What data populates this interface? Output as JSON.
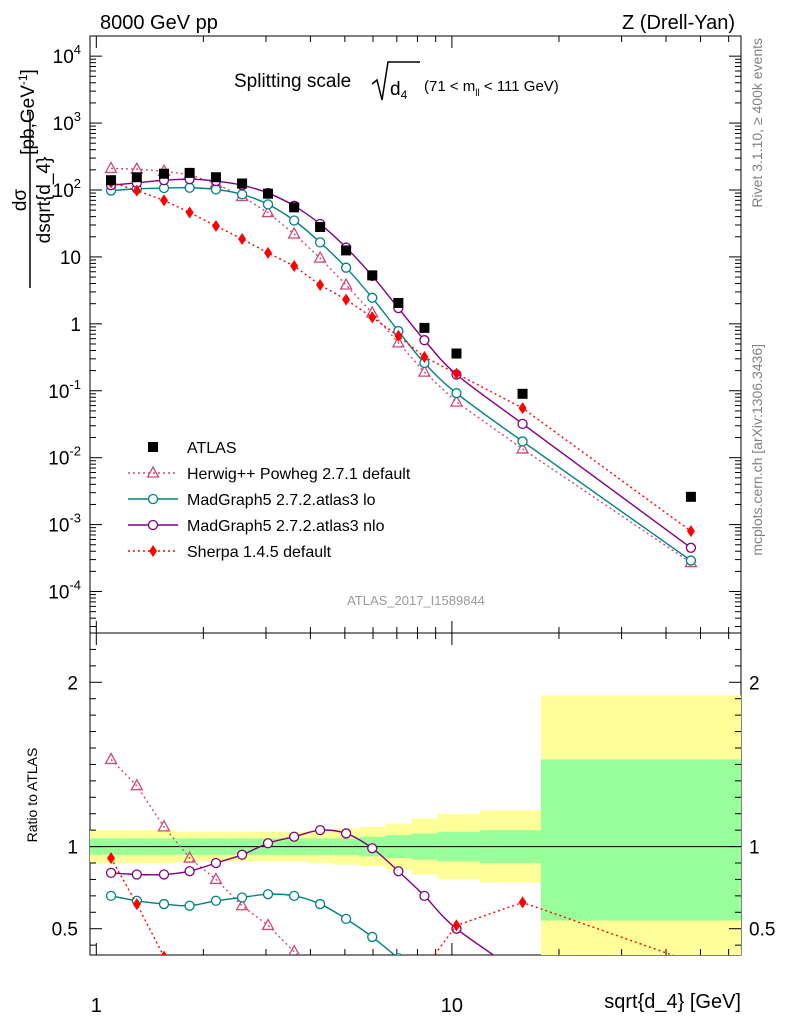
{
  "header": {
    "left": "8000 GeV pp",
    "right": "Z (Drell-Yan)"
  },
  "side_labels": {
    "rivet": "Rivet 3.1.10, ≥ 400k events",
    "mcplots": "mcplots.cern.ch [arXiv:1306.3436]"
  },
  "analysis_id": "ATLAS_2017_I1589844",
  "colors": {
    "atlas": "#000000",
    "herwig": "#cc4a78",
    "mg_lo": "#008080",
    "mg_nlo": "#800080",
    "sherpa": "#ff0000",
    "band_outer": "#ffff99",
    "band_inner": "#99ff99"
  },
  "chart_data": [
    {
      "type": "scatter",
      "panel": "main",
      "title": "Splitting scale √d4 (71 < mll < 111 GeV)",
      "title_parts": {
        "lead": "Splitting scale",
        "var": "d",
        "sub": "4",
        "range_pre": "(71 < m",
        "range_sub": "ll",
        "range_post": " < 111 GeV)"
      },
      "xlabel": "sqrt{d_4} [GeV]",
      "ylabel": "dσ/dsqrt{d_4} [pb,GeV⁻¹]",
      "ylabel_parts": {
        "num": "dσ",
        "den_pre": "dsqrt{d_4}",
        "unit_pre": "[pb,GeV",
        "unit_exp": "-1",
        "unit_post": "]"
      },
      "xscale": "log",
      "yscale": "log",
      "xlim": [
        0.96,
        65
      ],
      "ylim": [
        2.4e-05,
        20000
      ],
      "x_ticks": [
        {
          "v": 1,
          "label": "1"
        },
        {
          "v": 10,
          "label": "10"
        }
      ],
      "y_ticks": [
        {
          "v": 0.0001,
          "base": "10",
          "exp": "-4"
        },
        {
          "v": 0.001,
          "base": "10",
          "exp": "-3"
        },
        {
          "v": 0.01,
          "base": "10",
          "exp": "-2"
        },
        {
          "v": 0.1,
          "base": "10",
          "exp": "-1"
        },
        {
          "v": 1,
          "base": "1",
          "exp": ""
        },
        {
          "v": 10,
          "base": "10",
          "exp": ""
        },
        {
          "v": 100,
          "base": "10",
          "exp": "2"
        },
        {
          "v": 1000,
          "base": "10",
          "exp": "3"
        },
        {
          "v": 10000,
          "base": "10",
          "exp": "4"
        }
      ],
      "legend_position": "lower-left",
      "series": [
        {
          "name": "ATLAS",
          "key": "atlas",
          "marker": "square",
          "x": [
            1.1,
            1.3,
            1.55,
            1.83,
            2.17,
            2.57,
            3.04,
            3.6,
            4.26,
            5.04,
            5.97,
            7.07,
            8.37,
            10.3,
            15.8,
            47
          ],
          "y": [
            140,
            155,
            175,
            180,
            155,
            125,
            88,
            55,
            28,
            12.5,
            5.3,
            2.05,
            0.87,
            0.36,
            0.09,
            0.0026
          ]
        },
        {
          "name": "Herwig++ Powheg 2.7.1 default",
          "key": "herwig",
          "marker": "triangle-open",
          "line": "dotted",
          "x": [
            1.1,
            1.3,
            1.55,
            1.83,
            2.17,
            2.57,
            3.04,
            3.6,
            4.26,
            5.04,
            5.97,
            7.07,
            8.37,
            10.3,
            15.8,
            47
          ],
          "y": [
            210,
            205,
            190,
            170,
            125,
            80,
            46,
            22,
            9.6,
            3.8,
            1.45,
            0.52,
            0.19,
            0.068,
            0.0135,
            0.00027
          ]
        },
        {
          "name": "MadGraph5 2.7.2.atlas3 lo",
          "key": "mg_lo",
          "marker": "circle-open",
          "line": "solid",
          "x": [
            1.1,
            1.3,
            1.55,
            1.83,
            2.17,
            2.57,
            3.04,
            3.6,
            4.26,
            5.04,
            5.97,
            7.07,
            8.37,
            10.3,
            15.8,
            47
          ],
          "y": [
            98,
            104,
            107,
            108,
            102,
            86,
            61,
            35,
            16.5,
            6.9,
            2.45,
            0.78,
            0.26,
            0.092,
            0.0175,
            0.00029
          ]
        },
        {
          "name": "MadGraph5 2.7.2.atlas3 nlo",
          "key": "mg_nlo",
          "marker": "circle-open",
          "line": "solid",
          "x": [
            1.1,
            1.3,
            1.55,
            1.83,
            2.17,
            2.57,
            3.04,
            3.6,
            4.26,
            5.04,
            5.97,
            7.07,
            8.37,
            10.3,
            15.8,
            47
          ],
          "y": [
            118,
            128,
            140,
            145,
            136,
            118,
            90,
            58,
            31,
            13.8,
            5.2,
            1.72,
            0.57,
            0.175,
            0.032,
            0.00045
          ]
        },
        {
          "name": "Sherpa 1.4.5 default",
          "key": "sherpa",
          "marker": "diamond",
          "line": "dotted",
          "x": [
            1.1,
            1.3,
            1.55,
            1.83,
            2.17,
            2.57,
            3.04,
            3.6,
            4.26,
            5.04,
            5.97,
            7.07,
            8.37,
            10.3,
            15.8,
            47
          ],
          "y": [
            130,
            98,
            70,
            46,
            29,
            18.5,
            11.5,
            7.3,
            3.8,
            2.3,
            1.25,
            0.66,
            0.32,
            0.18,
            0.055,
            0.0008
          ]
        }
      ]
    },
    {
      "type": "line",
      "panel": "ratio",
      "ylabel": "Ratio to ATLAS",
      "xscale": "log",
      "xlim": [
        0.96,
        65
      ],
      "ylim": [
        0.34,
        2.3
      ],
      "y_ticks": [
        {
          "v": 0.5,
          "label": "0.5"
        },
        {
          "v": 1,
          "label": "1"
        },
        {
          "v": 2,
          "label": "2"
        }
      ],
      "reference_line": 1,
      "bands": {
        "edges": [
          0.96,
          1.2,
          1.42,
          1.68,
          1.99,
          2.36,
          2.79,
          3.31,
          3.92,
          4.64,
          5.49,
          6.5,
          7.7,
          9.1,
          12.0,
          17.8,
          65
        ],
        "outer": [
          [
            0.9,
            1.1
          ],
          [
            0.9,
            1.1
          ],
          [
            0.9,
            1.1
          ],
          [
            0.91,
            1.09
          ],
          [
            0.91,
            1.09
          ],
          [
            0.91,
            1.09
          ],
          [
            0.91,
            1.09
          ],
          [
            0.91,
            1.09
          ],
          [
            0.9,
            1.1
          ],
          [
            0.89,
            1.11
          ],
          [
            0.88,
            1.12
          ],
          [
            0.86,
            1.14
          ],
          [
            0.83,
            1.17
          ],
          [
            0.8,
            1.2
          ],
          [
            0.78,
            1.22
          ],
          [
            0.22,
            1.92
          ]
        ],
        "inner": [
          [
            0.95,
            1.05
          ],
          [
            0.95,
            1.05
          ],
          [
            0.95,
            1.05
          ],
          [
            0.95,
            1.05
          ],
          [
            0.95,
            1.05
          ],
          [
            0.95,
            1.05
          ],
          [
            0.95,
            1.05
          ],
          [
            0.95,
            1.05
          ],
          [
            0.95,
            1.05
          ],
          [
            0.95,
            1.05
          ],
          [
            0.94,
            1.06
          ],
          [
            0.93,
            1.07
          ],
          [
            0.92,
            1.08
          ],
          [
            0.91,
            1.09
          ],
          [
            0.9,
            1.1
          ],
          [
            0.55,
            1.53
          ]
        ]
      },
      "series": [
        {
          "name": "Herwig++ Powheg 2.7.1 default",
          "key": "herwig",
          "marker": "triangle-open",
          "line": "dotted",
          "x": [
            1.1,
            1.3,
            1.55,
            1.83,
            2.17,
            2.57,
            3.04,
            3.6,
            4.26
          ],
          "y": [
            1.53,
            1.37,
            1.12,
            0.93,
            0.8,
            0.64,
            0.52,
            0.36,
            0.22
          ]
        },
        {
          "name": "MadGraph5 2.7.2.atlas3 lo",
          "key": "mg_lo",
          "marker": "circle-open",
          "line": "solid",
          "x": [
            1.1,
            1.3,
            1.55,
            1.83,
            2.17,
            2.57,
            3.04,
            3.6,
            4.26,
            5.04,
            5.97,
            7.07
          ],
          "y": [
            0.7,
            0.67,
            0.65,
            0.64,
            0.67,
            0.69,
            0.71,
            0.7,
            0.65,
            0.56,
            0.45,
            0.32
          ]
        },
        {
          "name": "MadGraph5 2.7.2.atlas3 nlo",
          "key": "mg_nlo",
          "marker": "circle-open",
          "line": "solid",
          "x": [
            1.1,
            1.3,
            1.55,
            1.83,
            2.17,
            2.57,
            3.04,
            3.6,
            4.26,
            5.04,
            5.97,
            7.07,
            8.37,
            10.3,
            15.8
          ],
          "y": [
            0.84,
            0.83,
            0.83,
            0.85,
            0.9,
            0.95,
            1.02,
            1.06,
            1.1,
            1.08,
            0.99,
            0.85,
            0.7,
            0.5,
            0.22
          ]
        },
        {
          "name": "Sherpa 1.4.5 default",
          "key": "sherpa",
          "marker": "diamond",
          "line": "dotted",
          "x": [
            1.1,
            1.3,
            1.55,
            8.37,
            10.3,
            15.8,
            47
          ],
          "y": [
            0.93,
            0.65,
            0.33,
            0.26,
            0.52,
            0.66,
            0.3
          ]
        }
      ]
    }
  ]
}
